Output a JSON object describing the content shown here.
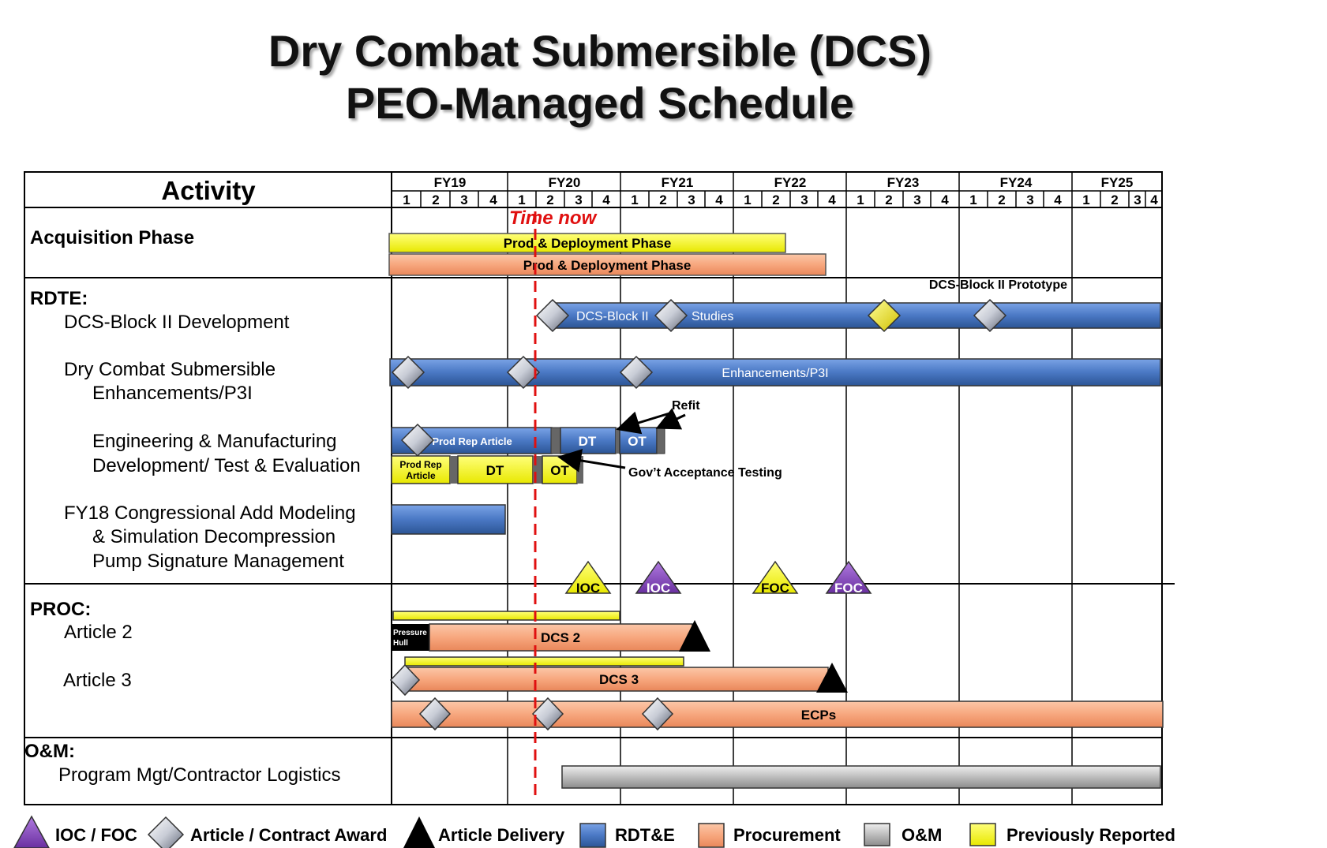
{
  "title": {
    "line1": "Dry Combat Submersible (DCS)",
    "line2": "PEO-Managed Schedule"
  },
  "header": {
    "activity": "Activity"
  },
  "fiscal_years": [
    "FY19",
    "FY20",
    "FY21",
    "FY22",
    "FY23",
    "FY24",
    "FY25"
  ],
  "quarters": [
    "1",
    "2",
    "3",
    "4"
  ],
  "time_now": "Time now",
  "rows": {
    "acq": "Acquisition Phase",
    "rdte": "RDTE:",
    "dcs_dev": "DCS-Block II Development",
    "enh1": "Dry Combat Submersible",
    "enh2": "Enhancements/P3I",
    "emd1": "Engineering & Manufacturing",
    "emd2": "Development/ Test & Evaluation",
    "fy18_1": "FY18 Congressional Add Modeling",
    "fy18_2": "& Simulation Decompression",
    "fy18_3": "Pump Signature Management",
    "proc": "PROC:",
    "art2": "Article 2",
    "art3": "Article 3",
    "om": "O&M:",
    "pm": "Program Mgt/Contractor Logistics"
  },
  "bars": {
    "prod1": "Prod & Deployment Phase",
    "prod2": "Prod & Deployment Phase",
    "block2_proto": "DCS-Block II Prototype",
    "block2": "DCS-Block II",
    "studies": "Studies",
    "enh": "Enhancements/P3I",
    "prod_rep": "Prod Rep Article",
    "dt_b": "DT",
    "ot_b": "OT",
    "refit": "Refit",
    "prod_rep_y1": "Prod Rep",
    "prod_rep_y2": "Article",
    "dt_y": "DT",
    "ot_y": "OT",
    "gov": "Gov’t Acceptance Testing",
    "ioc_y": "IOC",
    "ioc_p": "IOC",
    "foc_y": "FOC",
    "foc_p": "FOC",
    "ph1": "Pressure",
    "ph2": "Hull",
    "dcs2": "DCS 2",
    "dcs3": "DCS 3",
    "ecps": "ECPs"
  },
  "legend": {
    "ioc_foc": "IOC / FOC",
    "article": "Article  / Contract Award",
    "delivery": "Article  Delivery",
    "rdte": "RDT&E",
    "procurement": "Procurement",
    "om": "O&M",
    "prev": "Previously  Reported"
  },
  "colors": {
    "rdte": "#4a78c4",
    "procurement": "#f7a77e",
    "om": "#bdbdbd",
    "previously_reported": "#ffff00",
    "ioc_foc_purple": "#7a3fb0",
    "time_now": "#e01010"
  }
}
